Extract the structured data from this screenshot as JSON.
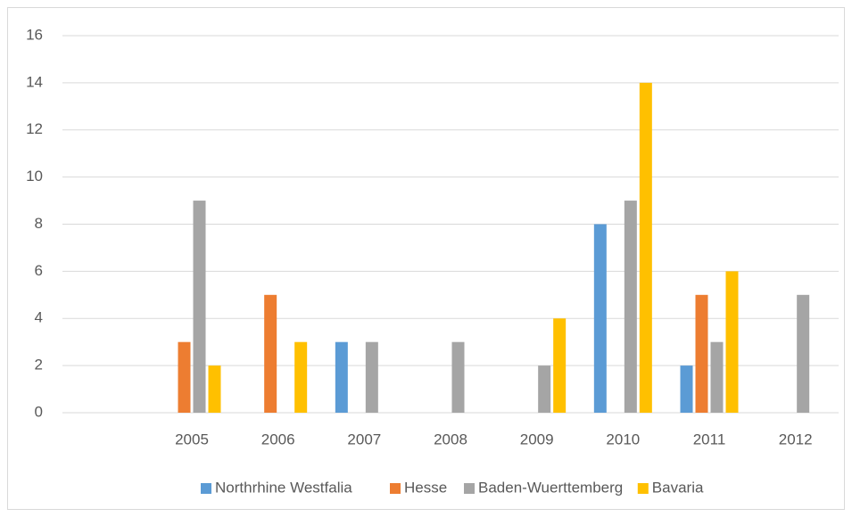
{
  "chart_data": {
    "type": "bar",
    "categories": [
      null,
      "2005",
      "2006",
      "2007",
      "2008",
      "2009",
      "2010",
      "2011",
      "2012"
    ],
    "series": [
      {
        "name": "Northrhine Westfalia",
        "color": "#5b9bd5",
        "values": [
          null,
          null,
          null,
          3,
          null,
          null,
          8,
          2,
          null
        ]
      },
      {
        "name": "Hesse",
        "color": "#ed7d31",
        "values": [
          null,
          3,
          5,
          null,
          null,
          null,
          null,
          5,
          null
        ]
      },
      {
        "name": "Baden-Wuerttemberg",
        "color": "#a5a5a5",
        "values": [
          null,
          9,
          null,
          3,
          3,
          2,
          9,
          3,
          5
        ]
      },
      {
        "name": "Bavaria",
        "color": "#ffc000",
        "values": [
          null,
          2,
          3,
          null,
          null,
          4,
          14,
          6,
          null
        ]
      }
    ],
    "ylim": [
      0,
      16
    ],
    "yticks": [
      0,
      2,
      4,
      6,
      8,
      10,
      12,
      14,
      16
    ],
    "grid": true,
    "legend": "bottom"
  }
}
